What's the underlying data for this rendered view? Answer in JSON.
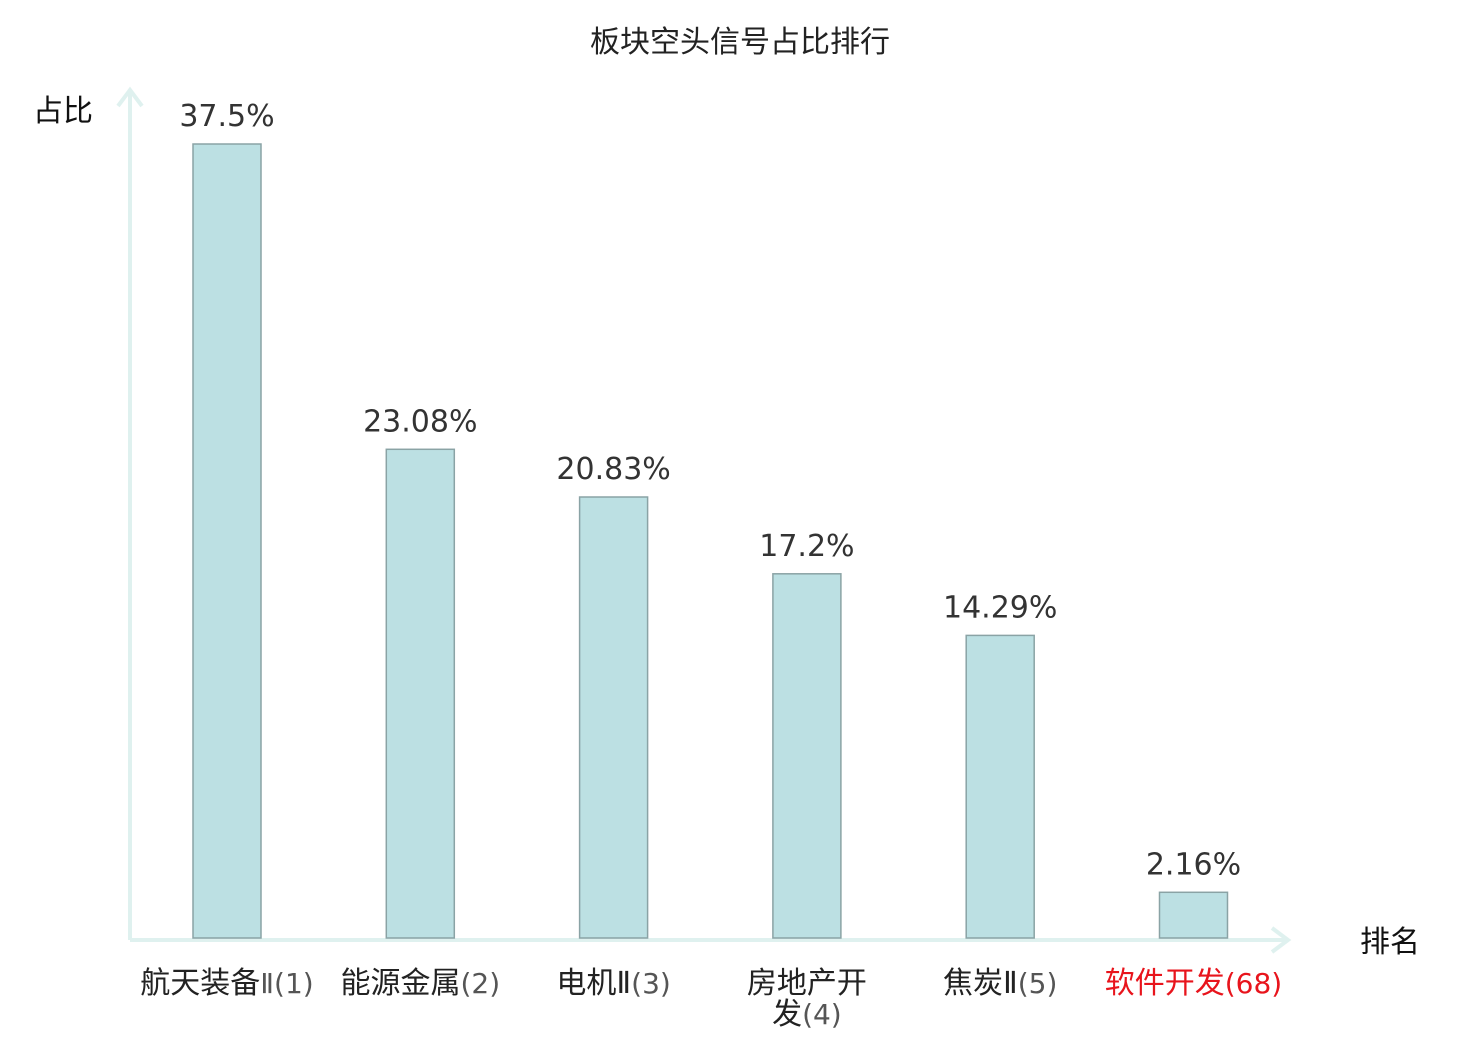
{
  "chart_data": {
    "type": "bar",
    "title": "板块空头信号占比排行",
    "ylabel": "占比",
    "xlabel": "排名",
    "ylim": [
      0,
      40
    ],
    "grid": false,
    "categories": [
      {
        "name_lines": [
          "航天装备"
        ],
        "suffix": "Ⅱ(1)",
        "highlight": false
      },
      {
        "name_lines": [
          "能源金属"
        ],
        "suffix": "(2)",
        "highlight": false
      },
      {
        "name_lines": [
          "电机Ⅱ"
        ],
        "suffix": "(3)",
        "highlight": false
      },
      {
        "name_lines": [
          "房地产开",
          "发"
        ],
        "suffix": "(4)",
        "highlight": false
      },
      {
        "name_lines": [
          "焦炭Ⅱ"
        ],
        "suffix": "(5)",
        "highlight": false
      },
      {
        "name_lines": [
          "软件开发"
        ],
        "suffix": "(68)",
        "highlight": true
      }
    ],
    "values": [
      37.5,
      23.08,
      20.83,
      17.2,
      14.29,
      2.16
    ],
    "data_labels": [
      "37.5%",
      "23.08%",
      "20.83%",
      "17.2%",
      "14.29%",
      "2.16%"
    ]
  },
  "colors": {
    "bar_fill": "#bce0e3",
    "bar_stroke": "#8aa3a5",
    "axis": "#dff1ef",
    "highlight": "#e8141c",
    "text": "#222222",
    "suffix_text": "#555555"
  }
}
